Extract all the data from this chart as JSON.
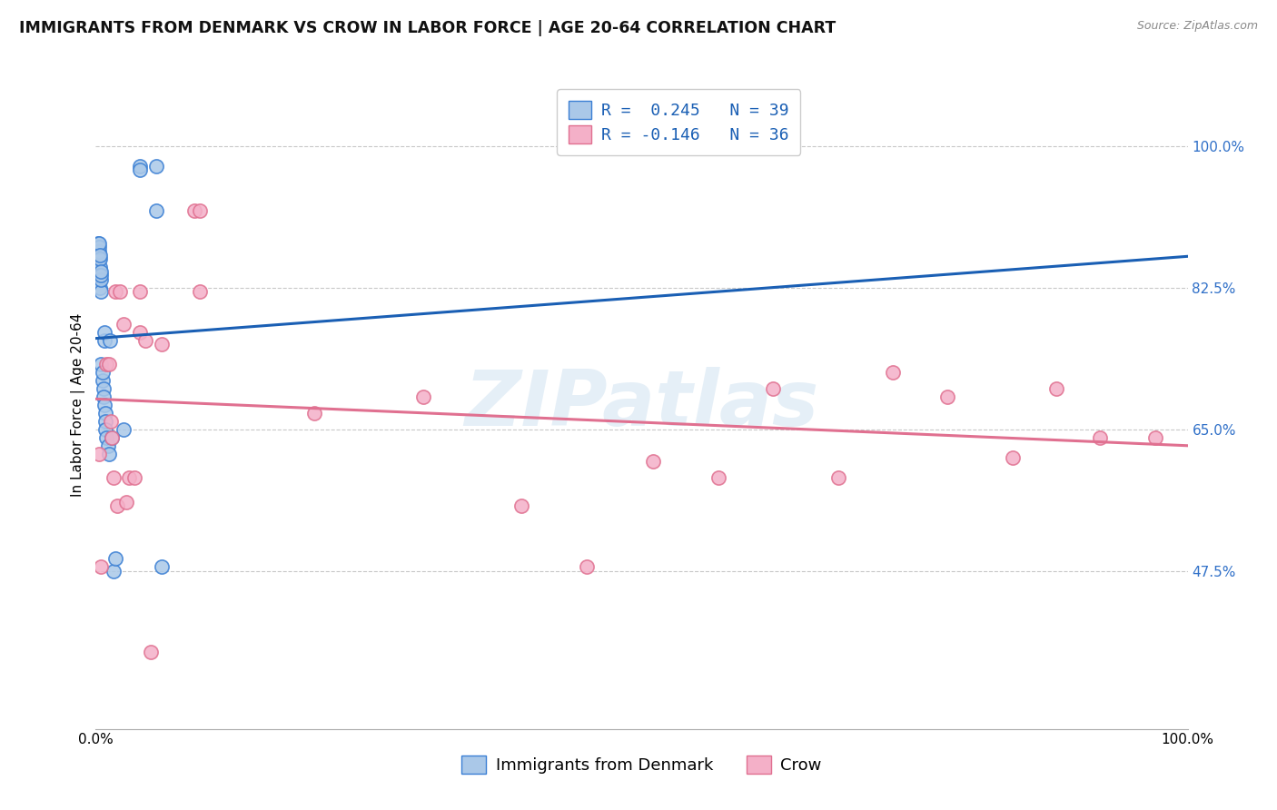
{
  "title": "IMMIGRANTS FROM DENMARK VS CROW IN LABOR FORCE | AGE 20-64 CORRELATION CHART",
  "source": "Source: ZipAtlas.com",
  "ylabel": "In Labor Force | Age 20-64",
  "legend_label1": "Immigrants from Denmark",
  "legend_label2": "Crow",
  "r1": 0.245,
  "n1": 39,
  "r2": -0.146,
  "n2": 36,
  "ytick_labels": [
    "47.5%",
    "65.0%",
    "82.5%",
    "100.0%"
  ],
  "ytick_values": [
    0.475,
    0.65,
    0.825,
    1.0
  ],
  "xlim": [
    0.0,
    1.0
  ],
  "ylim": [
    0.28,
    1.08
  ],
  "watermark": "ZIPatlas",
  "blue_scatter_x": [
    0.002,
    0.002,
    0.003,
    0.003,
    0.003,
    0.003,
    0.004,
    0.004,
    0.004,
    0.004,
    0.004,
    0.005,
    0.005,
    0.005,
    0.005,
    0.005,
    0.006,
    0.006,
    0.007,
    0.007,
    0.008,
    0.008,
    0.008,
    0.009,
    0.009,
    0.009,
    0.01,
    0.011,
    0.012,
    0.013,
    0.015,
    0.016,
    0.018,
    0.025,
    0.04,
    0.04,
    0.055,
    0.055,
    0.06
  ],
  "blue_scatter_y": [
    0.87,
    0.88,
    0.86,
    0.87,
    0.875,
    0.88,
    0.85,
    0.86,
    0.865,
    0.825,
    0.84,
    0.82,
    0.835,
    0.84,
    0.845,
    0.73,
    0.71,
    0.72,
    0.7,
    0.69,
    0.68,
    0.76,
    0.77,
    0.67,
    0.66,
    0.65,
    0.64,
    0.63,
    0.62,
    0.76,
    0.64,
    0.475,
    0.49,
    0.65,
    0.975,
    0.97,
    0.975,
    0.92,
    0.48
  ],
  "pink_scatter_x": [
    0.003,
    0.005,
    0.01,
    0.012,
    0.014,
    0.015,
    0.016,
    0.018,
    0.02,
    0.022,
    0.025,
    0.028,
    0.03,
    0.035,
    0.04,
    0.04,
    0.045,
    0.05,
    0.06,
    0.09,
    0.095,
    0.095,
    0.2,
    0.3,
    0.39,
    0.45,
    0.51,
    0.57,
    0.62,
    0.68,
    0.73,
    0.78,
    0.84,
    0.88,
    0.92,
    0.97
  ],
  "pink_scatter_y": [
    0.62,
    0.48,
    0.73,
    0.73,
    0.66,
    0.64,
    0.59,
    0.82,
    0.555,
    0.82,
    0.78,
    0.56,
    0.59,
    0.59,
    0.82,
    0.77,
    0.76,
    0.375,
    0.755,
    0.92,
    0.92,
    0.82,
    0.67,
    0.69,
    0.555,
    0.48,
    0.61,
    0.59,
    0.7,
    0.59,
    0.72,
    0.69,
    0.615,
    0.7,
    0.64,
    0.64
  ],
  "blue_color": "#aac8e8",
  "blue_edge_color": "#3a7fd4",
  "pink_color": "#f4b0c8",
  "pink_edge_color": "#e07090",
  "blue_line_color": "#1a5fb4",
  "pink_line_color": "#e07090",
  "grid_color": "#c8c8c8",
  "bg_color": "#ffffff",
  "title_color": "#111111",
  "right_tick_color": "#3070c8",
  "title_fontsize": 12.5,
  "ylabel_fontsize": 11,
  "tick_fontsize": 11,
  "legend_fontsize": 13,
  "source_fontsize": 9
}
